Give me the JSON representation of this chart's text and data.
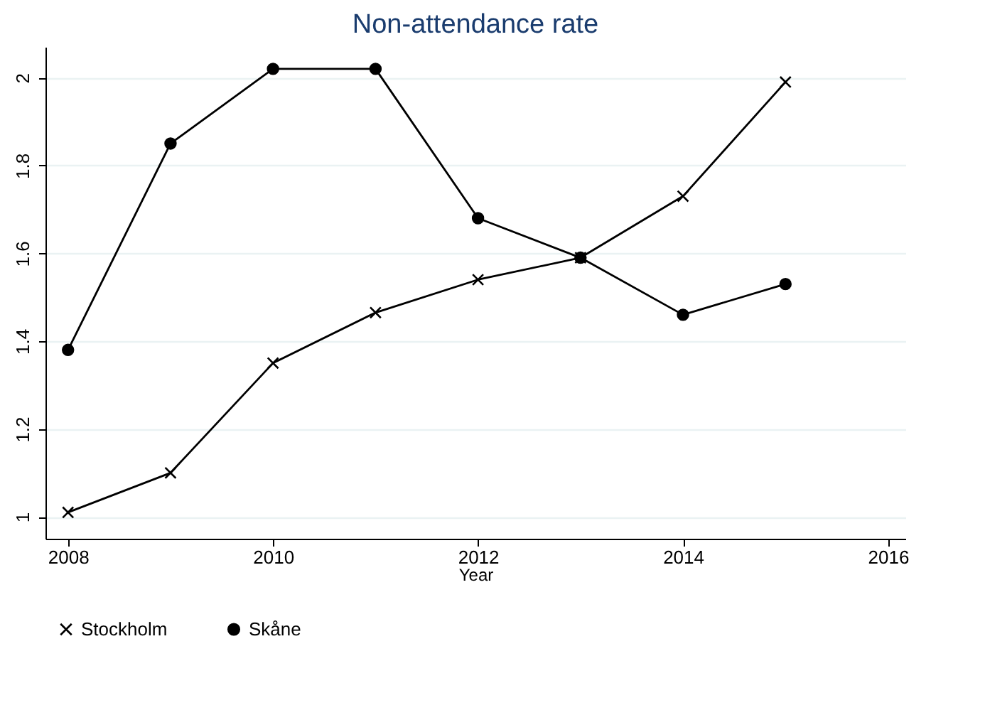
{
  "chart_data": {
    "type": "line",
    "title": "Non-attendance rate",
    "xlabel": "Year",
    "x": [
      2008,
      2009,
      2010,
      2011,
      2012,
      2013,
      2014,
      2015
    ],
    "series": [
      {
        "name": "Stockholm",
        "color": "#000000",
        "marker": "cross",
        "values": [
          1.01,
          1.1,
          1.35,
          1.465,
          1.54,
          1.59,
          1.73,
          1.99
        ]
      },
      {
        "name": "Skåne",
        "color": "#000000",
        "marker": "circle",
        "values": [
          1.38,
          1.85,
          2.02,
          2.02,
          1.68,
          1.59,
          1.46,
          1.53
        ]
      }
    ],
    "xlim": [
      2007.78,
      2016.17
    ],
    "xticks": [
      2008,
      2010,
      2012,
      2014,
      2016
    ],
    "ylim": [
      0.95,
      2.07
    ],
    "yticks": [
      1,
      1.2,
      1.4,
      1.6,
      1.8,
      2
    ],
    "grid": "y",
    "legend": "bottom",
    "line_style": "solid"
  }
}
